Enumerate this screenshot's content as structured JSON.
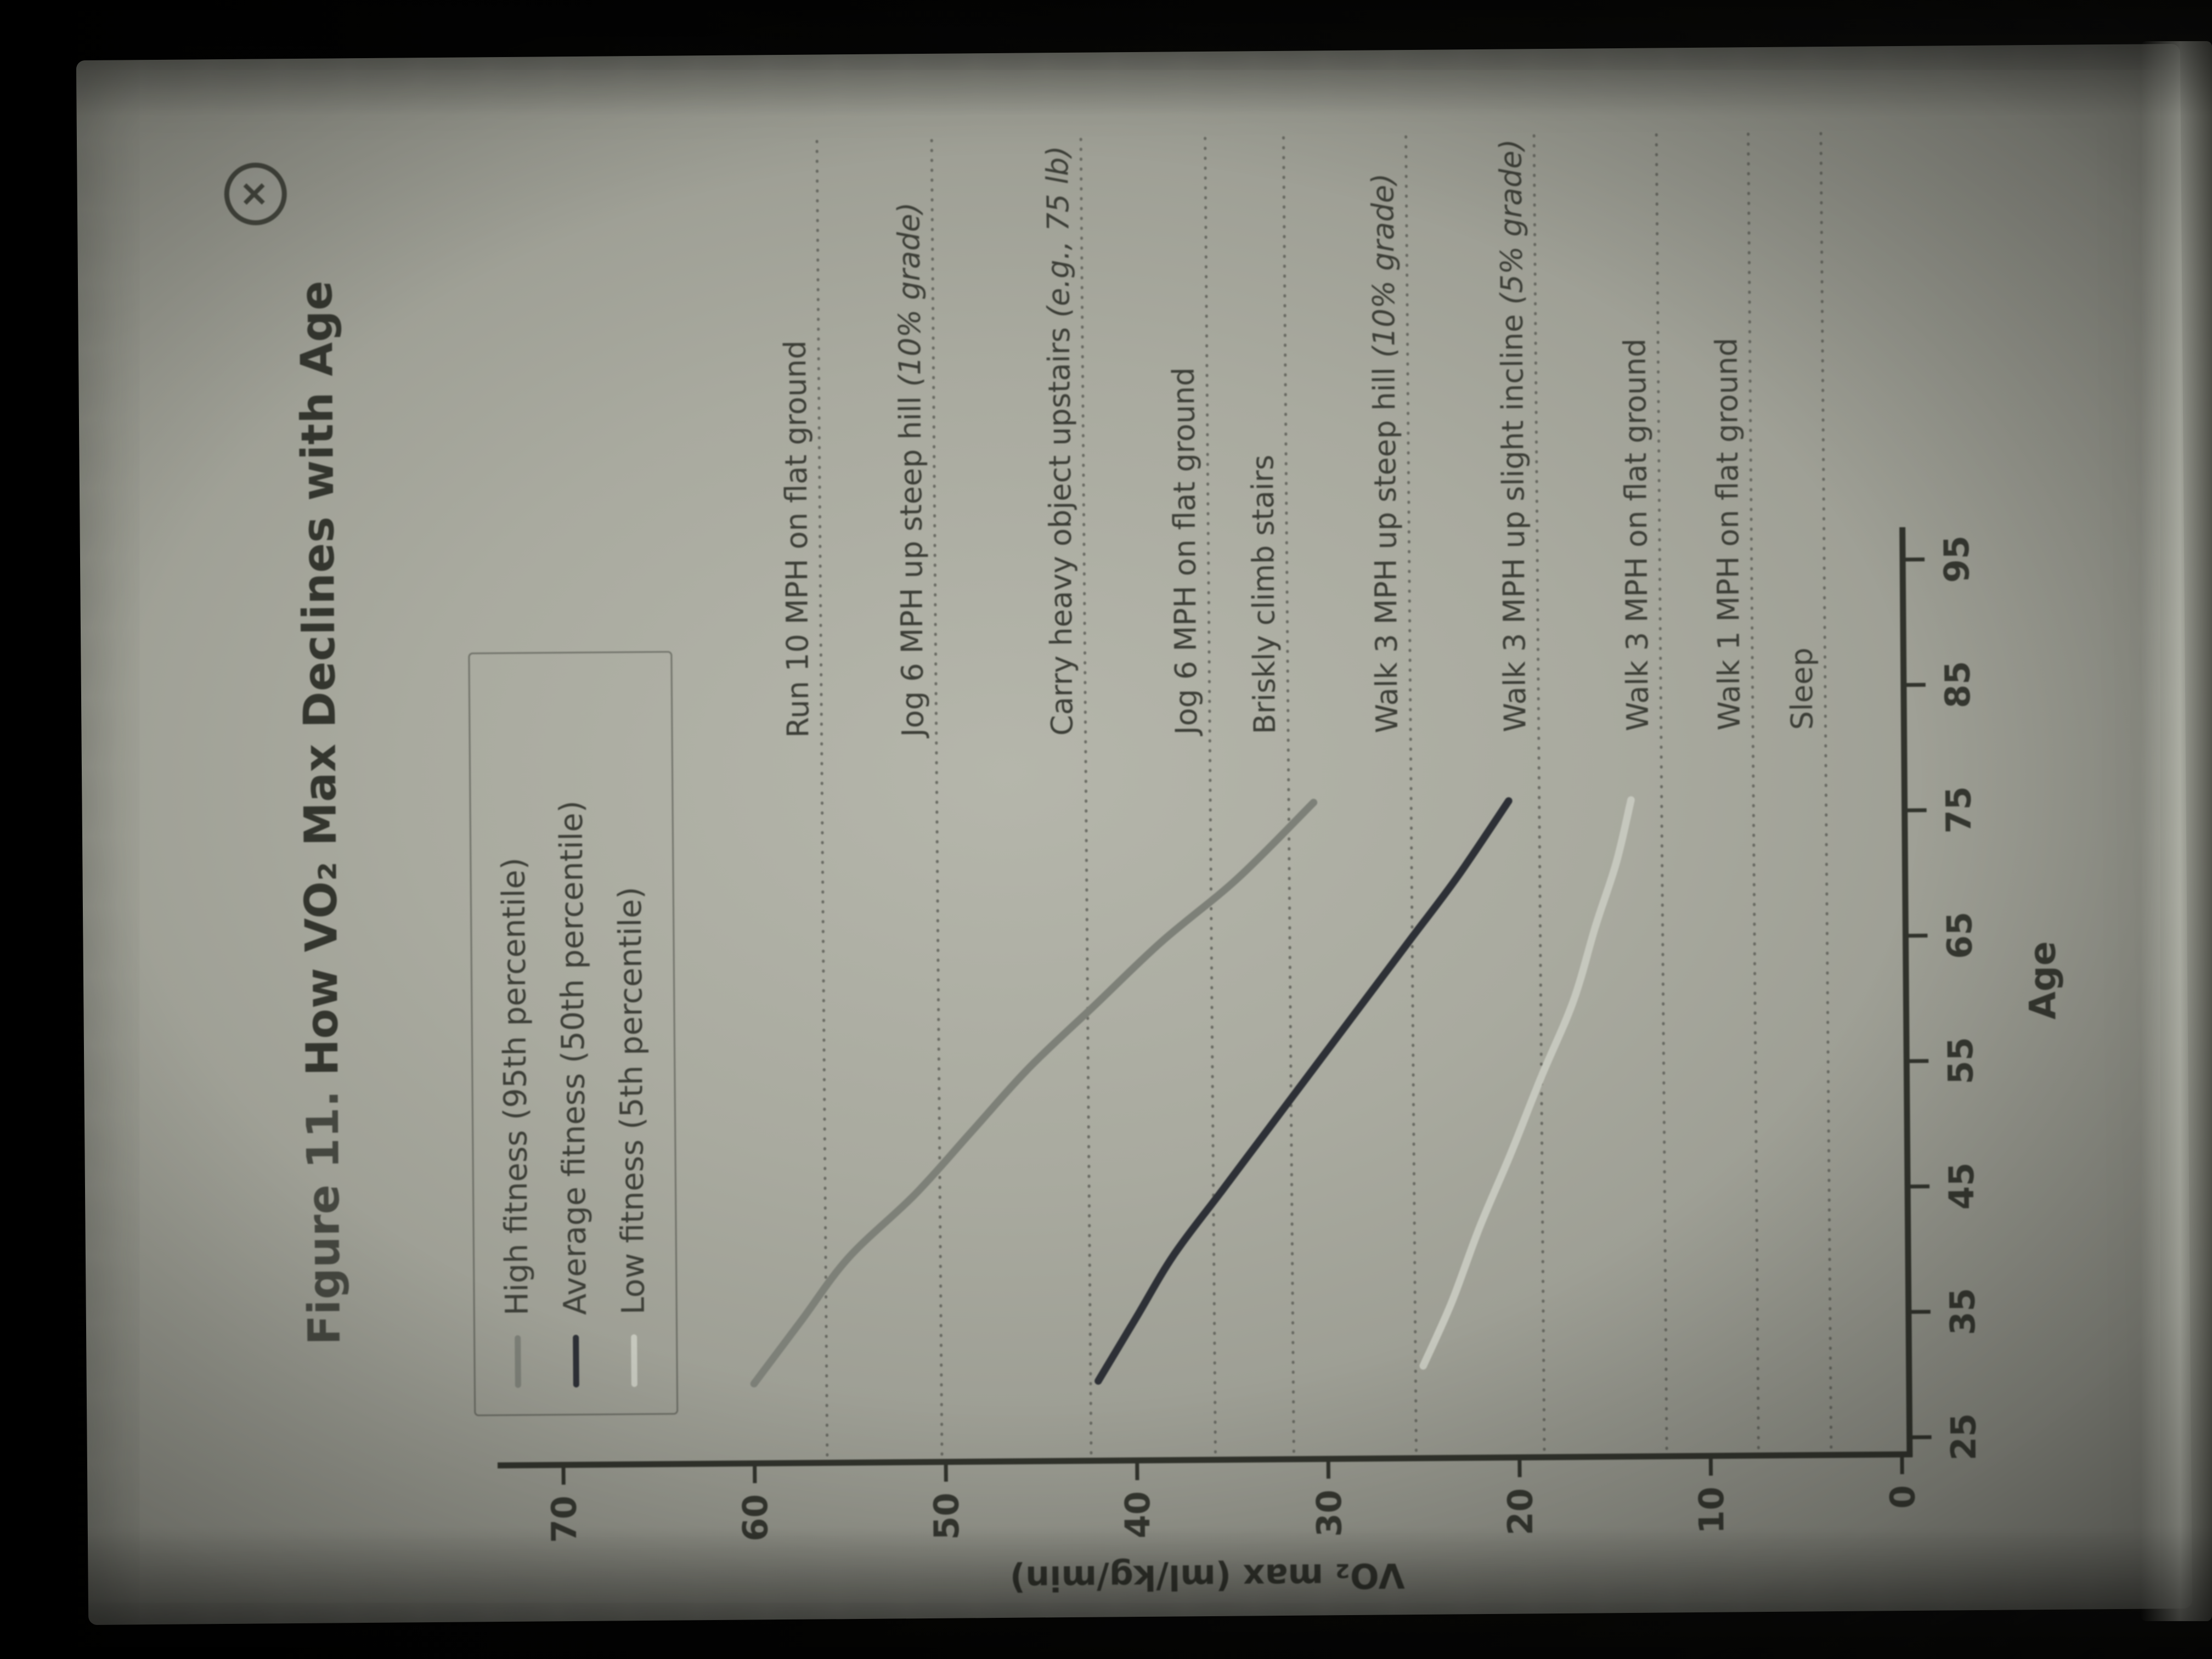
{
  "figure": {
    "title_label": "Figure 11.",
    "title": "How VO₂ Max Declines with Age",
    "close_label": "✕"
  },
  "legend": {
    "items": [
      {
        "label": "High fitness (95th percentile)",
        "color": "#7d8078"
      },
      {
        "label": "Average fitness (50th percentile)",
        "color": "#2d3036"
      },
      {
        "label": "Low fitness (5th percentile)",
        "color": "#c6c8be"
      }
    ]
  },
  "chart_data": {
    "type": "line",
    "title": "Figure 11. How VO₂ Max Declines with Age",
    "xlabel": "Age",
    "ylabel": "VO₂ max (ml/kg/min)",
    "xlim": [
      25,
      97
    ],
    "ylim": [
      0,
      72
    ],
    "xticks": [
      25,
      35,
      45,
      55,
      65,
      75,
      85,
      95
    ],
    "yticks": [
      0,
      10,
      20,
      30,
      40,
      50,
      60,
      70
    ],
    "grid": "dotted horizontal reference lines",
    "legend_position": "top-left boxed",
    "reference_lines": [
      {
        "label": "Run 10 MPH on flat ground",
        "label_italic": "",
        "value": 56.2
      },
      {
        "label": "Jog 6 MPH up steep hill ",
        "label_italic": "(10% grade)",
        "value": 50.2
      },
      {
        "label": "Carry heavy object upstairs ",
        "label_italic": "(e.g., 75 lb)",
        "value": 42.4
      },
      {
        "label": "Jog 6 MPH on flat ground",
        "label_italic": "",
        "value": 35.9
      },
      {
        "label": "Briskly climb stairs",
        "label_italic": "",
        "value": 31.8
      },
      {
        "label": "Walk 3 MPH up steep hill ",
        "label_italic": "(10% grade)",
        "value": 25.4
      },
      {
        "label": "Walk 3 MPH up slight incline ",
        "label_italic": "(5% grade)",
        "value": 18.7
      },
      {
        "label": "Walk 3 MPH on flat ground",
        "label_italic": "",
        "value": 12.3
      },
      {
        "label": "Walk 1 MPH on flat ground",
        "label_italic": "",
        "value": 7.5
      },
      {
        "label": "Sleep",
        "label_italic": "",
        "value": 3.7
      }
    ],
    "series": [
      {
        "id": "high-fitness",
        "name": "High fitness (95th percentile)",
        "color": "#7d8078",
        "points": [
          [
            30,
            60
          ],
          [
            35,
            57.5
          ],
          [
            40,
            55
          ],
          [
            45,
            51.5
          ],
          [
            50,
            48.5
          ],
          [
            55,
            45.5
          ],
          [
            60,
            42
          ],
          [
            65,
            38.5
          ],
          [
            70,
            34.5
          ],
          [
            76,
            30.5
          ]
        ]
      },
      {
        "id": "average-fitness",
        "name": "Average fitness (50th percentile)",
        "color": "#2d3036",
        "points": [
          [
            30,
            42
          ],
          [
            35,
            40
          ],
          [
            40,
            38
          ],
          [
            45,
            35.5
          ],
          [
            50,
            33
          ],
          [
            55,
            30.5
          ],
          [
            60,
            28
          ],
          [
            65,
            25.5
          ],
          [
            70,
            23
          ],
          [
            76,
            20.3
          ]
        ]
      },
      {
        "id": "low-fitness",
        "name": "Low fitness (5th percentile)",
        "color": "#c6c8be",
        "points": [
          [
            31,
            25
          ],
          [
            36,
            23.5
          ],
          [
            42,
            22
          ],
          [
            48,
            20.3
          ],
          [
            54,
            18.7
          ],
          [
            60,
            17
          ],
          [
            66,
            15.8
          ],
          [
            71,
            14.7
          ],
          [
            76,
            13.9
          ]
        ]
      }
    ]
  }
}
